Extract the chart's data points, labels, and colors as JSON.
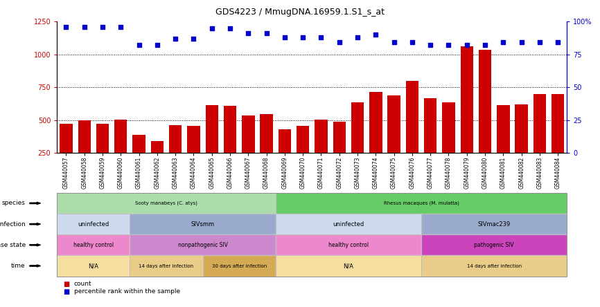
{
  "title": "GDS4223 / MmugDNA.16959.1.S1_s_at",
  "samples": [
    "GSM440057",
    "GSM440058",
    "GSM440059",
    "GSM440060",
    "GSM440061",
    "GSM440062",
    "GSM440063",
    "GSM440064",
    "GSM440065",
    "GSM440066",
    "GSM440067",
    "GSM440068",
    "GSM440069",
    "GSM440070",
    "GSM440071",
    "GSM440072",
    "GSM440073",
    "GSM440074",
    "GSM440075",
    "GSM440076",
    "GSM440077",
    "GSM440078",
    "GSM440079",
    "GSM440080",
    "GSM440081",
    "GSM440082",
    "GSM440083",
    "GSM440084"
  ],
  "counts": [
    470,
    500,
    470,
    505,
    385,
    340,
    460,
    455,
    615,
    610,
    535,
    545,
    430,
    455,
    505,
    490,
    635,
    715,
    685,
    800,
    665,
    635,
    1060,
    1035,
    615,
    620,
    700,
    700
  ],
  "percentiles": [
    96,
    96,
    96,
    96,
    82,
    82,
    87,
    87,
    95,
    95,
    91,
    91,
    88,
    88,
    88,
    84,
    88,
    90,
    84,
    84,
    82,
    82,
    82,
    82,
    84,
    84,
    84,
    84
  ],
  "bar_color": "#cc0000",
  "dot_color": "#0000cc",
  "ylim_left": [
    250,
    1250
  ],
  "ylim_right": [
    0,
    100
  ],
  "yticks_left": [
    250,
    500,
    750,
    1000,
    1250
  ],
  "yticks_right": [
    0,
    25,
    50,
    75,
    100
  ],
  "grid_values": [
    500,
    750,
    1000
  ],
  "species_groups": [
    {
      "label": "Sooty manabeys (C. atys)",
      "start": 0,
      "end": 12,
      "color": "#aaddaa"
    },
    {
      "label": "Rhesus macaques (M. mulatta)",
      "start": 12,
      "end": 28,
      "color": "#66cc66"
    }
  ],
  "infection_groups": [
    {
      "label": "uninfected",
      "start": 0,
      "end": 4,
      "color": "#ccd9ee"
    },
    {
      "label": "SIVsmm",
      "start": 4,
      "end": 12,
      "color": "#99aacc"
    },
    {
      "label": "uninfected",
      "start": 12,
      "end": 20,
      "color": "#ccd9ee"
    },
    {
      "label": "SIVmac239",
      "start": 20,
      "end": 28,
      "color": "#99aacc"
    }
  ],
  "disease_groups": [
    {
      "label": "healthy control",
      "start": 0,
      "end": 4,
      "color": "#ee88cc"
    },
    {
      "label": "nonpathogenic SIV",
      "start": 4,
      "end": 12,
      "color": "#cc88cc"
    },
    {
      "label": "healthy control",
      "start": 12,
      "end": 20,
      "color": "#ee88cc"
    },
    {
      "label": "pathogenic SIV",
      "start": 20,
      "end": 28,
      "color": "#cc44bb"
    }
  ],
  "time_groups": [
    {
      "label": "N/A",
      "start": 0,
      "end": 4,
      "color": "#f5dfa0"
    },
    {
      "label": "14 days after infection",
      "start": 4,
      "end": 8,
      "color": "#e8cc88"
    },
    {
      "label": "30 days after infection",
      "start": 8,
      "end": 12,
      "color": "#d4aa55"
    },
    {
      "label": "N/A",
      "start": 12,
      "end": 20,
      "color": "#f5dfa0"
    },
    {
      "label": "14 days after infection",
      "start": 20,
      "end": 28,
      "color": "#e8cc88"
    }
  ],
  "row_labels": [
    "species",
    "infection",
    "disease state",
    "time"
  ],
  "legend_color_count": "#cc0000",
  "legend_color_pct": "#0000cc"
}
